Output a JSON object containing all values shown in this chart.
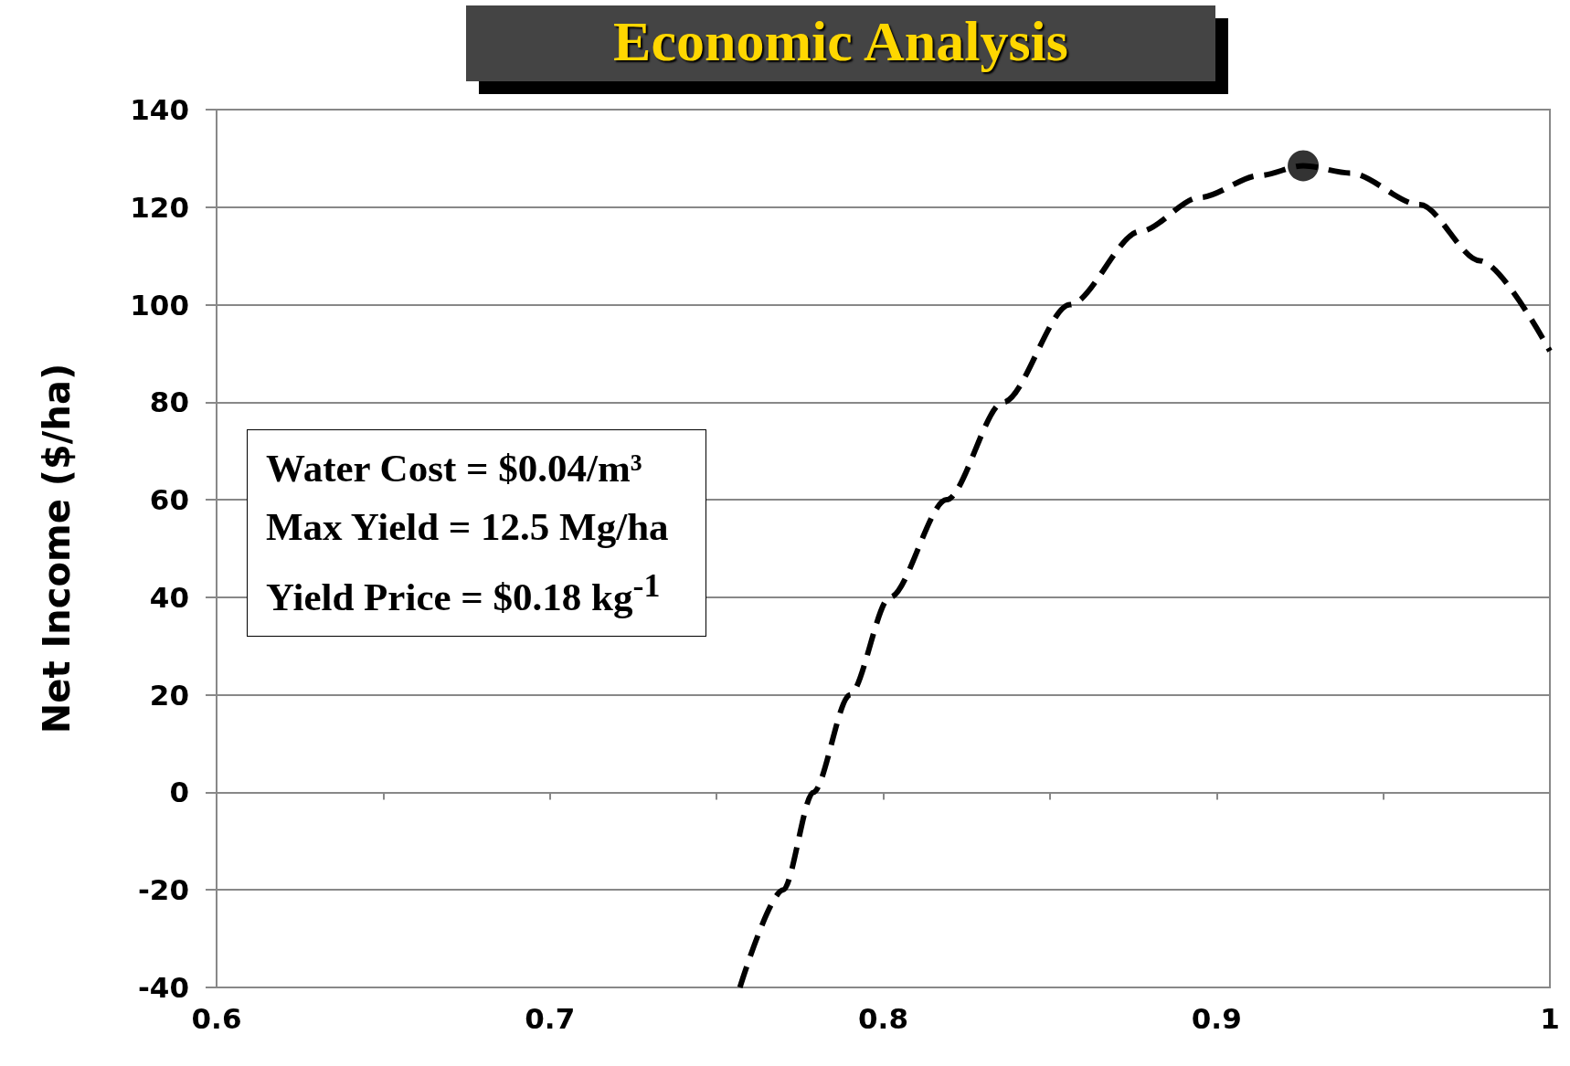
{
  "chart_data": {
    "type": "line",
    "title": "Economic Analysis",
    "ylabel": "Net Income ($/ha)",
    "annotations": [
      "Water Cost = $0.04/m³",
      "Max Yield = 12.5 Mg/ha",
      "Yield Price = $0.18 kg$^{-1}$"
    ],
    "series": [
      {
        "color": "#000000",
        "marker": "none",
        "line_style": "dashed",
        "x": [
          0.757,
          0.77,
          0.779,
          0.79,
          0.802,
          0.819,
          0.836,
          0.856,
          0.877,
          0.895,
          0.913,
          0.926,
          0.94,
          0.961,
          0.979,
          1.0
        ],
        "values": [
          -40,
          -20,
          0,
          20,
          40,
          60,
          80,
          100,
          115,
          122,
          126.5,
          128.5,
          127,
          120.5,
          109,
          90.5
        ]
      },
      {
        "type": "scatter",
        "color": "#000000",
        "marker": "circle",
        "x": [
          0.926
        ],
        "values": [
          128.5
        ]
      }
    ],
    "xlim": [
      0.6,
      1
    ],
    "xticks": [
      0.6,
      {
        "value": 0.65,
        "label": null
      },
      0.7,
      {
        "value": 0.75,
        "label": null
      },
      0.8,
      {
        "value": 0.85,
        "label": null
      },
      0.9,
      {
        "value": 0.95,
        "label": null
      },
      1
    ],
    "ylim": [
      -40,
      140
    ],
    "yticks": [
      -40,
      -20,
      0,
      20,
      40,
      60,
      80,
      100,
      120,
      140
    ],
    "grid": "y"
  }
}
